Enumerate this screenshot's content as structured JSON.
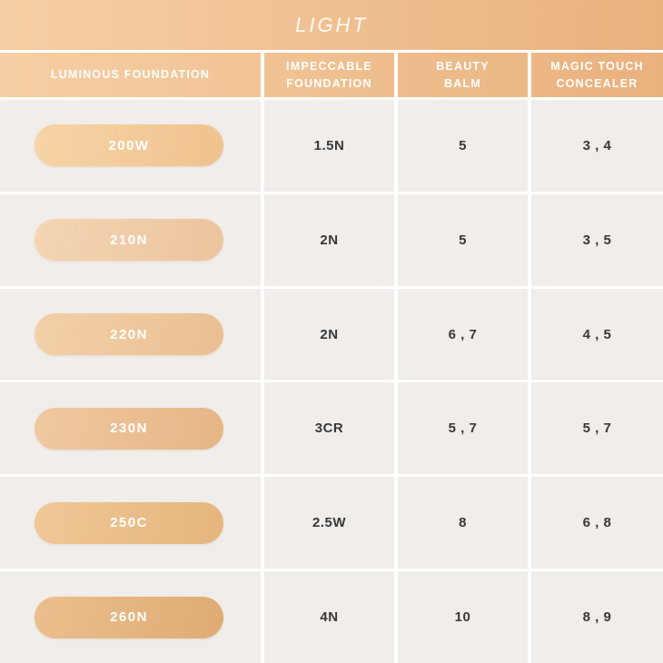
{
  "banner": {
    "title": "LIGHT"
  },
  "chart_data": {
    "type": "table",
    "title": "LIGHT",
    "columns": [
      "LUMINOUS FOUNDATION",
      "IMPECCABLE\nFOUNDATION",
      "BEAUTY\nBALM",
      "MAGIC TOUCH\nCONCEALER"
    ],
    "rows": [
      {
        "shade": "200W",
        "swatch_colors": [
          "#f7d4a6",
          "#efc28e"
        ],
        "impeccable_foundation": "1.5N",
        "beauty_balm": "5",
        "magic_touch_concealer": "3 , 4"
      },
      {
        "shade": "210N",
        "swatch_colors": [
          "#f4d5b3",
          "#ecc49e"
        ],
        "impeccable_foundation": "2N",
        "beauty_balm": "5",
        "magic_touch_concealer": "3 , 5"
      },
      {
        "shade": "220N",
        "swatch_colors": [
          "#f3d0a8",
          "#eabf92"
        ],
        "impeccable_foundation": "2N",
        "beauty_balm": "6 , 7",
        "magic_touch_concealer": "4 , 5"
      },
      {
        "shade": "230N",
        "swatch_colors": [
          "#f0c9a0",
          "#e6b586"
        ],
        "impeccable_foundation": "3CR",
        "beauty_balm": "5 , 7",
        "magic_touch_concealer": "5 , 7"
      },
      {
        "shade": "250C",
        "swatch_colors": [
          "#f0c897",
          "#e5b57d"
        ],
        "impeccable_foundation": "2.5W",
        "beauty_balm": "8",
        "magic_touch_concealer": "6 , 8"
      },
      {
        "shade": "260N",
        "swatch_colors": [
          "#ebbf8e",
          "#dfab73"
        ],
        "impeccable_foundation": "4N",
        "beauty_balm": "10",
        "magic_touch_concealer": "8 , 9"
      }
    ]
  },
  "colors": {
    "banner_gradient": [
      "#f6cfa4",
      "#e9b17e"
    ],
    "body_cell_bg": "#f0edea",
    "divider": "#ffffff",
    "value_text": "#383838",
    "header_text": "#ffffff"
  }
}
